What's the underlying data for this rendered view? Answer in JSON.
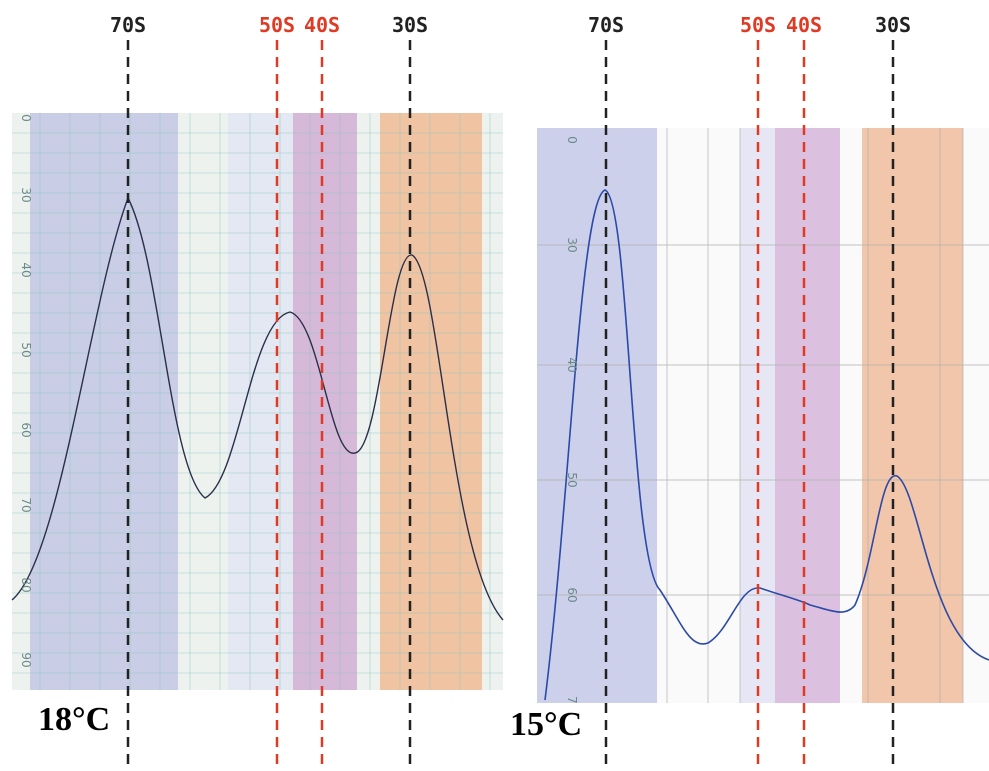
{
  "panels": [
    {
      "temperature": "18°C",
      "markers": [
        {
          "label": "70S",
          "color": "#222222"
        },
        {
          "label": "50S",
          "color": "#e03a24"
        },
        {
          "label": "40S",
          "color": "#e03a24"
        },
        {
          "label": "30S",
          "color": "#222222"
        }
      ],
      "scale": [
        "0",
        "30",
        "40",
        "50",
        "60",
        "70",
        "80",
        "90"
      ]
    },
    {
      "temperature": "15°C",
      "markers": [
        {
          "label": "70S",
          "color": "#222222"
        },
        {
          "label": "50S",
          "color": "#e03a24"
        },
        {
          "label": "40S",
          "color": "#e03a24"
        },
        {
          "label": "30S",
          "color": "#222222"
        }
      ],
      "scale": [
        "0",
        "30",
        "40",
        "50",
        "60",
        "7"
      ]
    }
  ]
}
